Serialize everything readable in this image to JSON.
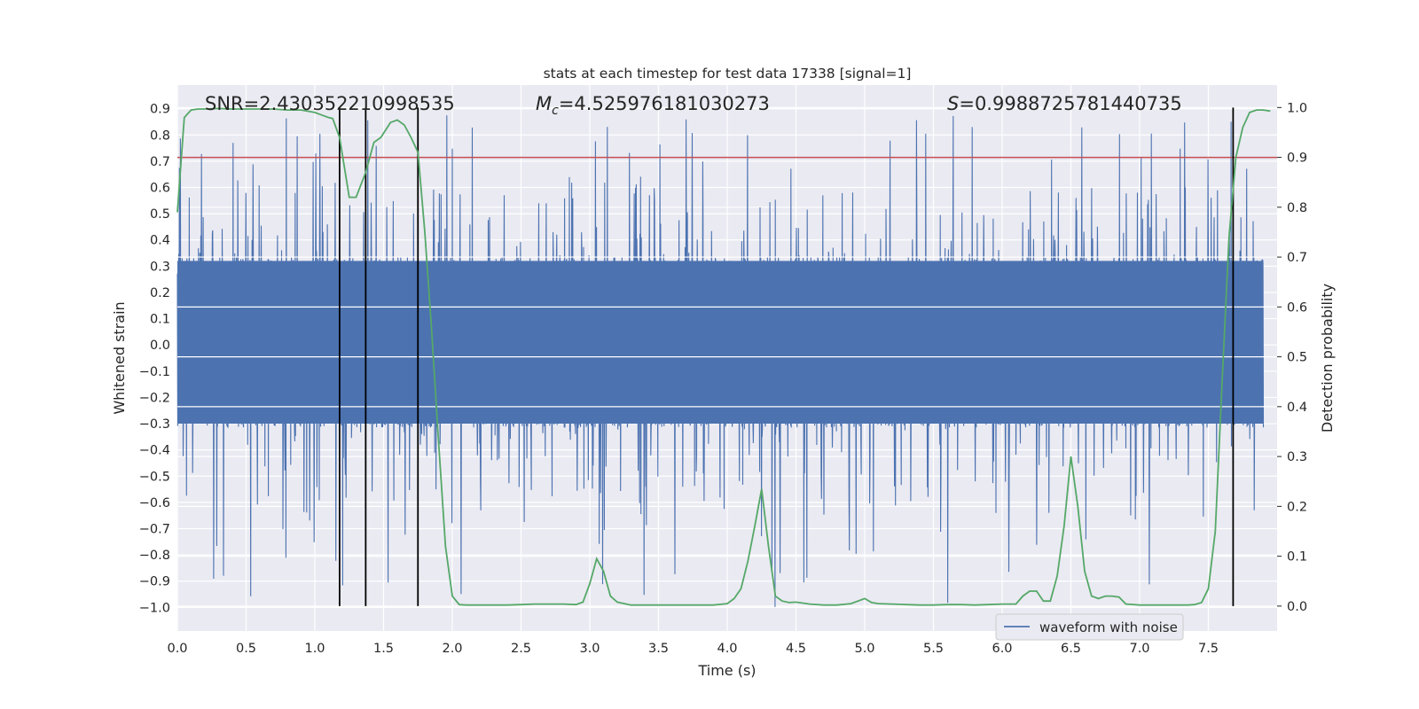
{
  "chart_data": {
    "type": "line",
    "title": "stats at each timestep for test data 17338 [signal=1]",
    "xlabel": "Time (s)",
    "ylabel": "Whitened strain",
    "y2label": "Detection probability",
    "xlim": [
      0.0,
      8.0
    ],
    "ylim": [
      -1.09,
      0.99
    ],
    "y2lim": [
      -0.05,
      1.045
    ],
    "xticks": [
      "0.0",
      "0.5",
      "1.0",
      "1.5",
      "2.0",
      "2.5",
      "3.0",
      "3.5",
      "4.0",
      "4.5",
      "5.0",
      "5.5",
      "6.0",
      "6.5",
      "7.0",
      "7.5"
    ],
    "yticks": [
      "0.9",
      "0.8",
      "0.7",
      "0.6",
      "0.5",
      "0.4",
      "0.3",
      "0.2",
      "0.1",
      "0.0",
      "−0.1",
      "−0.2",
      "−0.3",
      "−0.4",
      "−0.5",
      "−0.6",
      "−0.7",
      "−0.8",
      "−0.9",
      "−1.0"
    ],
    "y2ticks": [
      "1.0",
      "0.9",
      "0.8",
      "0.7",
      "0.6",
      "0.5",
      "0.4",
      "0.3",
      "0.2",
      "0.1",
      "0.0"
    ],
    "grid": true,
    "annotations": {
      "snr": "SNR=2.430352210998535",
      "mc": "M_c=4.525976181030273",
      "s": "S=0.9988725781440735"
    },
    "threshold": {
      "axis": "y2",
      "value": 0.9,
      "color": "#c44e52"
    },
    "vlines": [
      1.18,
      1.37,
      1.75,
      7.68
    ],
    "legend": {
      "position": "lower-right",
      "label": "waveform with noise"
    },
    "colors": {
      "waveform": "#4c72b0",
      "probability": "#55a868",
      "vline": "#000000",
      "background": "#eaeaf2"
    },
    "series": [
      {
        "name": "waveform with noise",
        "axis": "y",
        "kind": "dense-noise",
        "core_range": [
          -0.3,
          0.32
        ],
        "peak_high": 0.88,
        "peak_low": -1.0
      },
      {
        "axis": "y2",
        "x": [
          0.0,
          0.05,
          0.1,
          0.15,
          0.2,
          0.3,
          0.4,
          0.5,
          0.6,
          0.7,
          0.8,
          0.9,
          1.0,
          1.05,
          1.1,
          1.13,
          1.18,
          1.25,
          1.3,
          1.37,
          1.43,
          1.48,
          1.55,
          1.6,
          1.65,
          1.7,
          1.75,
          1.8,
          1.85,
          1.9,
          1.95,
          2.0,
          2.05,
          2.1,
          2.2,
          2.3,
          2.4,
          2.5,
          2.6,
          2.7,
          2.8,
          2.9,
          2.95,
          3.0,
          3.05,
          3.1,
          3.15,
          3.2,
          3.3,
          3.4,
          3.5,
          3.6,
          3.7,
          3.8,
          3.9,
          4.0,
          4.05,
          4.1,
          4.15,
          4.2,
          4.25,
          4.3,
          4.35,
          4.4,
          4.45,
          4.5,
          4.6,
          4.7,
          4.8,
          4.9,
          5.0,
          5.05,
          5.1,
          5.2,
          5.3,
          5.4,
          5.5,
          5.6,
          5.7,
          5.8,
          5.9,
          6.0,
          6.1,
          6.15,
          6.2,
          6.25,
          6.3,
          6.35,
          6.4,
          6.45,
          6.5,
          6.55,
          6.6,
          6.65,
          6.7,
          6.75,
          6.8,
          6.85,
          6.9,
          7.0,
          7.1,
          7.2,
          7.3,
          7.35,
          7.4,
          7.45,
          7.5,
          7.55,
          7.6,
          7.65,
          7.7,
          7.75,
          7.8,
          7.85,
          7.9,
          7.95
        ],
        "values": [
          0.79,
          0.98,
          0.995,
          0.997,
          0.997,
          0.998,
          0.997,
          0.997,
          0.997,
          0.997,
          0.995,
          0.995,
          0.99,
          0.985,
          0.98,
          0.978,
          0.94,
          0.82,
          0.82,
          0.87,
          0.93,
          0.94,
          0.97,
          0.975,
          0.965,
          0.94,
          0.91,
          0.75,
          0.55,
          0.33,
          0.12,
          0.02,
          0.003,
          0.002,
          0.002,
          0.002,
          0.002,
          0.003,
          0.004,
          0.004,
          0.004,
          0.003,
          0.008,
          0.045,
          0.095,
          0.07,
          0.02,
          0.008,
          0.002,
          0.002,
          0.002,
          0.002,
          0.002,
          0.002,
          0.002,
          0.005,
          0.015,
          0.035,
          0.09,
          0.16,
          0.235,
          0.12,
          0.02,
          0.01,
          0.007,
          0.008,
          0.004,
          0.002,
          0.002,
          0.005,
          0.015,
          0.007,
          0.005,
          0.004,
          0.003,
          0.002,
          0.002,
          0.003,
          0.003,
          0.002,
          0.003,
          0.004,
          0.004,
          0.02,
          0.03,
          0.03,
          0.01,
          0.01,
          0.06,
          0.16,
          0.3,
          0.2,
          0.07,
          0.02,
          0.015,
          0.02,
          0.02,
          0.018,
          0.004,
          0.002,
          0.002,
          0.002,
          0.002,
          0.002,
          0.003,
          0.007,
          0.035,
          0.15,
          0.45,
          0.74,
          0.9,
          0.96,
          0.99,
          0.995,
          0.995,
          0.993
        ]
      }
    ]
  }
}
